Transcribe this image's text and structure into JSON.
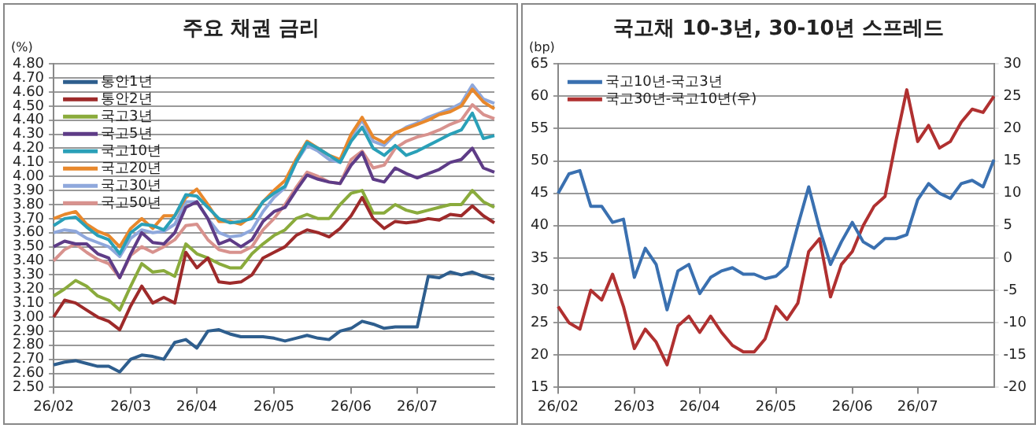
{
  "chart_data": [
    {
      "type": "line",
      "title": "주요 채권 금리",
      "ylabel": "(%)",
      "legend": "top left",
      "grid": "y",
      "categories": [
        "26/02",
        null,
        null,
        null,
        null,
        null,
        null,
        "26/03",
        null,
        null,
        null,
        null,
        null,
        "26/04",
        null,
        null,
        null,
        null,
        null,
        null,
        "26/05",
        null,
        null,
        null,
        null,
        null,
        null,
        "26/06",
        null,
        null,
        null,
        null,
        null,
        "26/07",
        null,
        null,
        null,
        null,
        null,
        null,
        null
      ],
      "ylim": [
        2.5,
        4.8
      ],
      "yticks": [
        {
          "value": 2.5,
          "label": "2.50"
        },
        {
          "value": 2.6,
          "label": "2.60"
        },
        {
          "value": 2.7,
          "label": "2.70"
        },
        {
          "value": 2.8,
          "label": "2.80"
        },
        {
          "value": 2.9,
          "label": "2.90"
        },
        {
          "value": 3.0,
          "label": "3.00"
        },
        {
          "value": 3.1,
          "label": "3.10"
        },
        {
          "value": 3.2,
          "label": "3.20"
        },
        {
          "value": 3.3,
          "label": "3.30"
        },
        {
          "value": 3.4,
          "label": "3.40"
        },
        {
          "value": 3.5,
          "label": "3.50"
        },
        {
          "value": 3.6,
          "label": "3.60"
        },
        {
          "value": 3.7,
          "label": "3.70"
        },
        {
          "value": 3.8,
          "label": "3.80"
        },
        {
          "value": 3.9,
          "label": "3.90"
        },
        {
          "value": 4.0,
          "label": "4.00"
        },
        {
          "value": 4.1,
          "label": "4.10"
        },
        {
          "value": 4.2,
          "label": "4.20"
        },
        {
          "value": 4.3,
          "label": "4.30"
        },
        {
          "value": 4.4,
          "label": "4.40"
        },
        {
          "value": 4.5,
          "label": "4.50"
        },
        {
          "value": 4.6,
          "label": "4.60"
        },
        {
          "value": 4.7,
          "label": "4.70"
        },
        {
          "value": 4.8,
          "label": "4.80"
        }
      ],
      "series": [
        {
          "name": "통안1년",
          "color": "#2e5e8e",
          "values": [
            2.66,
            2.68,
            2.69,
            2.67,
            2.65,
            2.65,
            2.61,
            2.7,
            2.73,
            2.72,
            2.7,
            2.82,
            2.84,
            2.78,
            2.9,
            2.91,
            2.88,
            2.86,
            2.86,
            2.86,
            2.85,
            2.83,
            2.85,
            2.87,
            2.85,
            2.84,
            2.9,
            2.92,
            2.97,
            2.95,
            2.92,
            2.93,
            2.93,
            2.93,
            3.29,
            3.28,
            3.32,
            3.3,
            3.32,
            3.29,
            3.27
          ]
        },
        {
          "name": "통안2년",
          "color": "#9e2a2a",
          "values": [
            3.0,
            3.12,
            3.1,
            3.05,
            3.0,
            2.97,
            2.91,
            3.08,
            3.22,
            3.1,
            3.14,
            3.1,
            3.46,
            3.35,
            3.42,
            3.25,
            3.24,
            3.25,
            3.3,
            3.42,
            3.46,
            3.5,
            3.58,
            3.62,
            3.6,
            3.57,
            3.63,
            3.72,
            3.85,
            3.7,
            3.63,
            3.68,
            3.67,
            3.68,
            3.7,
            3.69,
            3.73,
            3.72,
            3.79,
            3.72,
            3.67
          ]
        },
        {
          "name": "국고3년",
          "color": "#8aab3c",
          "values": [
            3.15,
            3.2,
            3.26,
            3.22,
            3.15,
            3.12,
            3.05,
            3.22,
            3.38,
            3.32,
            3.33,
            3.29,
            3.52,
            3.45,
            3.42,
            3.38,
            3.35,
            3.35,
            3.45,
            3.52,
            3.58,
            3.62,
            3.7,
            3.73,
            3.7,
            3.7,
            3.8,
            3.88,
            3.9,
            3.74,
            3.74,
            3.8,
            3.76,
            3.74,
            3.76,
            3.78,
            3.8,
            3.8,
            3.9,
            3.82,
            3.78
          ]
        },
        {
          "name": "국고5년",
          "color": "#5e3c87",
          "values": [
            3.5,
            3.54,
            3.52,
            3.52,
            3.45,
            3.42,
            3.28,
            3.45,
            3.6,
            3.53,
            3.52,
            3.6,
            3.78,
            3.82,
            3.7,
            3.52,
            3.55,
            3.5,
            3.55,
            3.68,
            3.75,
            3.78,
            3.9,
            4.01,
            3.98,
            3.96,
            3.95,
            4.08,
            4.17,
            3.98,
            3.96,
            4.06,
            4.02,
            3.99,
            4.02,
            4.05,
            4.1,
            4.12,
            4.2,
            4.06,
            4.03
          ]
        },
        {
          "name": "국고10년",
          "color": "#2aa0b8",
          "values": [
            3.65,
            3.7,
            3.71,
            3.64,
            3.58,
            3.55,
            3.45,
            3.6,
            3.66,
            3.65,
            3.62,
            3.72,
            3.87,
            3.86,
            3.78,
            3.7,
            3.67,
            3.68,
            3.7,
            3.82,
            3.88,
            3.93,
            4.1,
            4.24,
            4.2,
            4.15,
            4.1,
            4.25,
            4.35,
            4.2,
            4.15,
            4.22,
            4.15,
            4.18,
            4.22,
            4.26,
            4.3,
            4.33,
            4.45,
            4.27,
            4.29
          ]
        },
        {
          "name": "국고20년",
          "color": "#e8882c",
          "values": [
            3.7,
            3.73,
            3.75,
            3.66,
            3.61,
            3.58,
            3.5,
            3.63,
            3.7,
            3.63,
            3.72,
            3.72,
            3.85,
            3.91,
            3.8,
            3.68,
            3.68,
            3.66,
            3.72,
            3.82,
            3.9,
            3.97,
            4.12,
            4.25,
            4.2,
            4.15,
            4.12,
            4.3,
            4.42,
            4.28,
            4.24,
            4.31,
            4.34,
            4.37,
            4.4,
            4.44,
            4.46,
            4.5,
            4.62,
            4.53,
            4.48
          ]
        },
        {
          "name": "국고30년",
          "color": "#8fa8dc",
          "values": [
            3.6,
            3.62,
            3.61,
            3.56,
            3.53,
            3.5,
            3.43,
            3.56,
            3.62,
            3.6,
            3.61,
            3.66,
            3.82,
            3.82,
            3.7,
            3.6,
            3.57,
            3.58,
            3.62,
            3.75,
            3.85,
            3.92,
            4.1,
            4.22,
            4.18,
            4.12,
            4.1,
            4.28,
            4.4,
            4.25,
            4.22,
            4.3,
            4.35,
            4.38,
            4.42,
            4.45,
            4.48,
            4.52,
            4.65,
            4.55,
            4.52
          ]
        },
        {
          "name": "국고50년",
          "color": "#d8928e",
          "values": [
            3.4,
            3.48,
            3.52,
            3.46,
            3.41,
            3.38,
            3.28,
            3.44,
            3.5,
            3.46,
            3.5,
            3.55,
            3.65,
            3.66,
            3.55,
            3.48,
            3.46,
            3.46,
            3.5,
            3.62,
            3.7,
            3.8,
            3.92,
            4.03,
            4.0,
            3.96,
            3.95,
            4.12,
            4.18,
            4.06,
            4.08,
            4.2,
            4.25,
            4.28,
            4.3,
            4.33,
            4.37,
            4.4,
            4.51,
            4.44,
            4.41
          ]
        }
      ]
    },
    {
      "type": "line",
      "title": "국고채 10-3년, 30-10년 스프레드",
      "ylabel": "(bp)",
      "legend": "top left",
      "grid": "y",
      "categories": [
        "26/02",
        null,
        null,
        null,
        null,
        null,
        null,
        "26/03",
        null,
        null,
        null,
        null,
        null,
        "26/04",
        null,
        null,
        null,
        null,
        null,
        null,
        "26/05",
        null,
        null,
        null,
        null,
        null,
        null,
        "26/06",
        null,
        null,
        null,
        null,
        null,
        "26/07",
        null,
        null,
        null,
        null,
        null,
        null,
        null
      ],
      "ylim": [
        15,
        65
      ],
      "yticks": [
        15,
        20,
        25,
        30,
        35,
        40,
        45,
        50,
        55,
        60,
        65
      ],
      "y2lim": [
        -20,
        30
      ],
      "y2ticks": [
        -20,
        -15,
        -10,
        -5,
        0,
        5,
        10,
        15,
        20,
        25,
        30
      ],
      "series": [
        {
          "name": "국고10년-국고3년",
          "color": "#3a70b0",
          "values": [
            45,
            48,
            48.5,
            43,
            43,
            40.5,
            41,
            32,
            36.5,
            34,
            27,
            33,
            34,
            29.5,
            32,
            33,
            33.5,
            32.5,
            32.5,
            31.8,
            32.2,
            33.7,
            40,
            46,
            39.5,
            34,
            37.5,
            40.5,
            37.5,
            36.5,
            38,
            38,
            38.6,
            44,
            46.5,
            45,
            44.2,
            46.5,
            47,
            46,
            50.2
          ]
        },
        {
          "name": "국고30년-국고10년(우)",
          "color": "#b03030",
          "axis": "y2",
          "values": [
            -7.5,
            -10,
            -11,
            -5,
            -6.5,
            -2.5,
            -7.5,
            -14,
            -11,
            -13,
            -16.5,
            -10.5,
            -9,
            -11.5,
            -9,
            -11.5,
            -13.5,
            -14.5,
            -14.5,
            -12.5,
            -7.5,
            -9.5,
            -7,
            1,
            3,
            -6,
            -1,
            1,
            5,
            8,
            9.5,
            18,
            26,
            18,
            20.5,
            17,
            18,
            21,
            23,
            22.5,
            25
          ]
        }
      ]
    }
  ]
}
